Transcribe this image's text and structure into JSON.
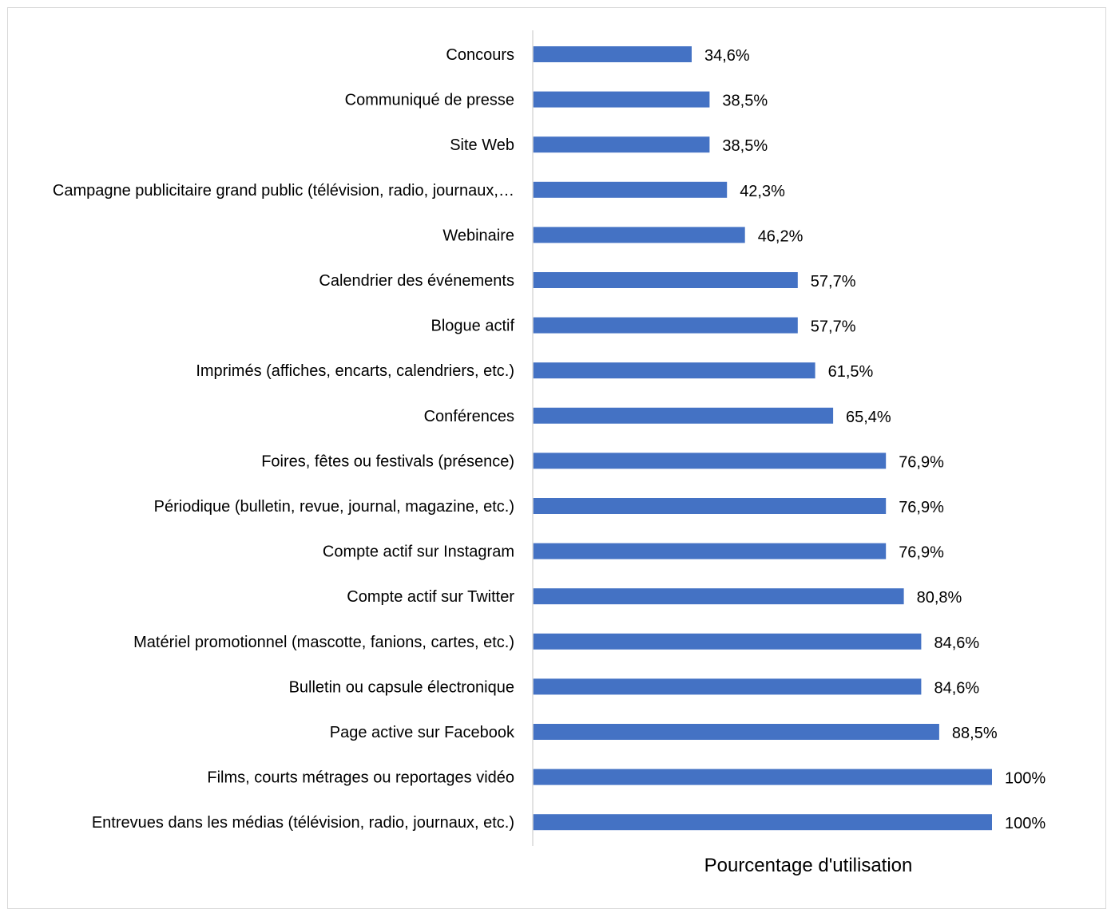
{
  "chart_data": {
    "type": "bar",
    "orientation": "horizontal",
    "categories": [
      "Concours",
      "Communiqué de presse",
      "Site Web",
      "Campagne publicitaire grand public (télévision, radio, journaux,…",
      "Webinaire",
      "Calendrier des événements",
      "Blogue actif",
      "Imprimés (affiches, encarts, calendriers, etc.)",
      "Conférences",
      "Foires, fêtes ou festivals (présence)",
      "Périodique (bulletin, revue, journal, magazine, etc.)",
      "Compte actif sur Instagram",
      "Compte actif sur Twitter",
      "Matériel promotionnel (mascotte, fanions, cartes, etc.)",
      "Bulletin ou capsule électronique",
      "Page active sur Facebook",
      "Films, courts métrages ou reportages vidéo",
      "Entrevues dans les médias (télévision, radio, journaux, etc.)"
    ],
    "values": [
      34.6,
      38.5,
      38.5,
      42.3,
      46.2,
      57.7,
      57.7,
      61.5,
      65.4,
      76.9,
      76.9,
      76.9,
      80.8,
      84.6,
      84.6,
      88.5,
      100,
      100
    ],
    "value_labels": [
      "34,6%",
      "38,5%",
      "38,5%",
      "42,3%",
      "46,2%",
      "57,7%",
      "57,7%",
      "61,5%",
      "65,4%",
      "76,9%",
      "76,9%",
      "76,9%",
      "80,8%",
      "84,6%",
      "84,6%",
      "88,5%",
      "100%",
      "100%"
    ],
    "xlabel": "Pourcentage d'utilisation",
    "ylabel": "",
    "xlim": [
      0,
      100
    ],
    "grid": false,
    "bar_color": "#4472C4",
    "axis_color": "#d9d9d9"
  }
}
